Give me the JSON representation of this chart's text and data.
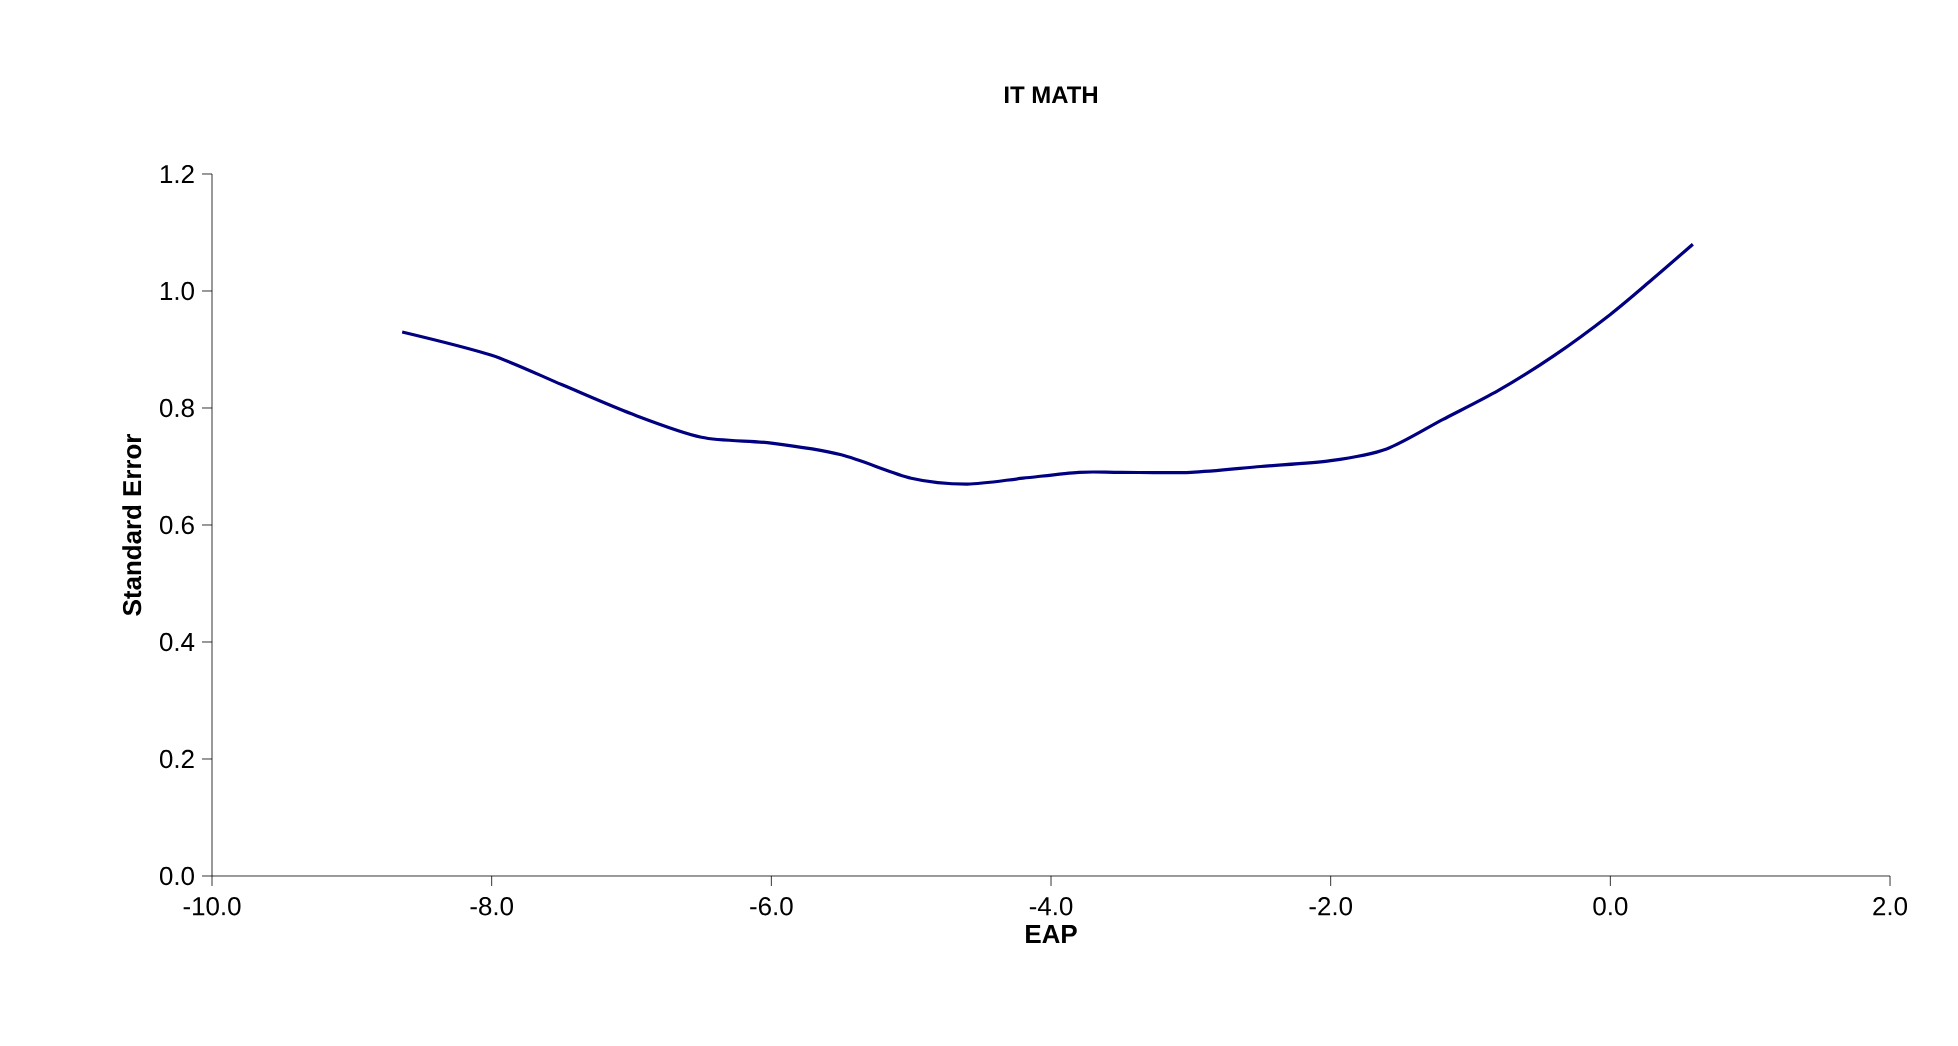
{
  "chart_data": {
    "type": "line",
    "title": "IT MATH",
    "xlabel": "EAP",
    "ylabel": "Standard Error",
    "x": [
      -8.64,
      -8.0,
      -7.5,
      -7.0,
      -6.5,
      -6.0,
      -5.5,
      -5.0,
      -4.6,
      -4.2,
      -3.8,
      -3.5,
      -3.0,
      -2.5,
      -2.0,
      -1.6,
      -1.2,
      -0.8,
      -0.4,
      0.0,
      0.3,
      0.59
    ],
    "series": [
      {
        "color": "#000080",
        "values": [
          0.93,
          0.89,
          0.84,
          0.79,
          0.75,
          0.74,
          0.72,
          0.68,
          0.67,
          0.68,
          0.69,
          0.69,
          0.69,
          0.7,
          0.71,
          0.73,
          0.78,
          0.83,
          0.89,
          0.96,
          1.02,
          1.08
        ]
      }
    ],
    "xlim": [
      -10,
      2
    ],
    "ylim": [
      0,
      1.2
    ],
    "xticks": [
      {
        "value": -10,
        "label": "-10.0"
      },
      {
        "value": -8,
        "label": "-8.0"
      },
      {
        "value": -6,
        "label": "-6.0"
      },
      {
        "value": -4,
        "label": "-4.0"
      },
      {
        "value": -2,
        "label": "-2.0"
      },
      {
        "value": 0,
        "label": "0.0"
      },
      {
        "value": 2,
        "label": "2.0"
      }
    ],
    "yticks": [
      {
        "value": 0,
        "label": "0.0"
      },
      {
        "value": 0.2,
        "label": "0.2"
      },
      {
        "value": 0.4,
        "label": "0.4"
      },
      {
        "value": 0.6,
        "label": "0.6"
      },
      {
        "value": 0.8,
        "label": "0.8"
      },
      {
        "value": 1.0,
        "label": "1.0"
      },
      {
        "value": 1.2,
        "label": "1.2"
      }
    ],
    "grid": false,
    "legend": false,
    "marker": "none",
    "line_style": "solid"
  }
}
